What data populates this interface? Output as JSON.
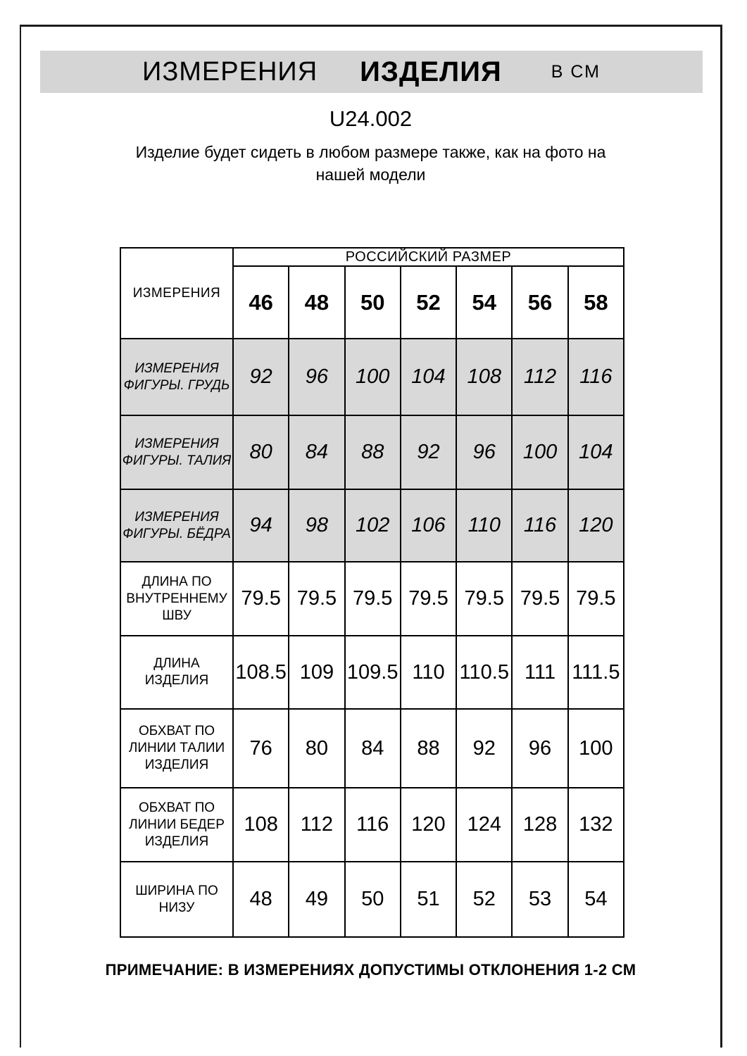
{
  "header": {
    "title_measurements": "ИЗМЕРЕНИЯ",
    "title_product": "ИЗДЕЛИЯ",
    "title_units": "В СМ"
  },
  "article_code": "U24.002",
  "subtitle_line1": "Изделие будет сидеть в любом размере также, как на фото на",
  "subtitle_line2": "нашей модели",
  "table": {
    "corner_header": "ИЗМЕРЕНИЯ",
    "size_group_header": "РОССИЙСКИЙ РАЗМЕР",
    "sizes": [
      "46",
      "48",
      "50",
      "52",
      "54",
      "56",
      "58"
    ],
    "rows": [
      {
        "label_lines": [
          "ИЗМЕРЕНИЯ",
          "ФИГУРЫ. ГРУДЬ"
        ],
        "shaded": true,
        "values": [
          "92",
          "96",
          "100",
          "104",
          "108",
          "112",
          "116"
        ]
      },
      {
        "label_lines": [
          "ИЗМЕРЕНИЯ",
          "ФИГУРЫ. ТАЛИЯ"
        ],
        "shaded": true,
        "values": [
          "80",
          "84",
          "88",
          "92",
          "96",
          "100",
          "104"
        ]
      },
      {
        "label_lines": [
          "ИЗМЕРЕНИЯ",
          "ФИГУРЫ. БЁДРА"
        ],
        "shaded": true,
        "values": [
          "94",
          "98",
          "102",
          "106",
          "110",
          "116",
          "120"
        ]
      },
      {
        "label_lines": [
          "ДЛИНА ПО",
          "ВНУТРЕННЕМУ",
          "ШВУ"
        ],
        "shaded": false,
        "values": [
          "79.5",
          "79.5",
          "79.5",
          "79.5",
          "79.5",
          "79.5",
          "79.5"
        ]
      },
      {
        "label_lines": [
          "ДЛИНА ИЗДЕЛИЯ"
        ],
        "shaded": false,
        "values": [
          "108.5",
          "109",
          "109.5",
          "110",
          "110.5",
          "111",
          "111.5"
        ]
      },
      {
        "label_lines": [
          "ОБХВАТ ПО",
          "ЛИНИИ ТАЛИИ",
          "ИЗДЕЛИЯ"
        ],
        "shaded": false,
        "values": [
          "76",
          "80",
          "84",
          "88",
          "92",
          "96",
          "100"
        ]
      },
      {
        "label_lines": [
          "ОБХВАТ ПО",
          "ЛИНИИ БЕДЕР",
          "ИЗДЕЛИЯ"
        ],
        "shaded": false,
        "values": [
          "108",
          "112",
          "116",
          "120",
          "124",
          "128",
          "132"
        ]
      },
      {
        "label_lines": [
          "ШИРИНА ПО",
          "НИЗУ"
        ],
        "shaded": false,
        "values": [
          "48",
          "49",
          "50",
          "51",
          "52",
          "53",
          "54"
        ]
      }
    ]
  },
  "note": "ПРИМЕЧАНИЕ: В ИЗМЕРЕНИЯХ ДОПУСТИМЫ ОТКЛОНЕНИЯ 1-2 СМ",
  "colors": {
    "band_gray": "#d5d5d5",
    "row_gray": "#d9d9d9",
    "border_black": "#000000",
    "frame_black": "#1c1c1c"
  }
}
